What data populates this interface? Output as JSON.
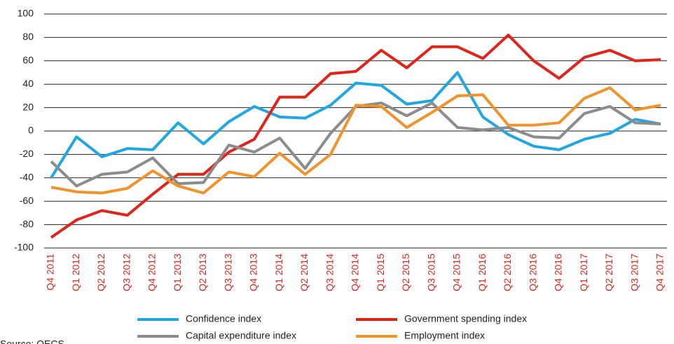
{
  "chart_data": {
    "type": "line",
    "categories": [
      "Q4 2011",
      "Q1 2012",
      "Q2 2012",
      "Q3 2012",
      "Q4 2012",
      "Q1 2013",
      "Q2 2013",
      "Q3 2013",
      "Q4 2013",
      "Q1 2014",
      "Q2 2014",
      "Q3 2014",
      "Q4 2014",
      "Q1 2015",
      "Q2 2015",
      "Q3 2015",
      "Q4 2015",
      "Q1 2016",
      "Q2 2016",
      "Q3 2016",
      "Q4 2016",
      "Q1 2017",
      "Q2 2017",
      "Q3 2017",
      "Q4 2017"
    ],
    "series": [
      {
        "name": "Confidence index",
        "color": "#1ea7e1",
        "values": [
          -40,
          -5,
          -22,
          -15,
          -16,
          7,
          -11,
          8,
          21,
          12,
          11,
          22,
          41,
          39,
          23,
          26,
          50,
          12,
          -3,
          -13,
          -16,
          -7,
          -2,
          10,
          6
        ]
      },
      {
        "name": "Government spending index",
        "color": "#e2231a",
        "values": [
          -91,
          -76,
          -68,
          -72,
          -54,
          -37,
          -37,
          -18,
          -7,
          29,
          29,
          49,
          51,
          69,
          54,
          72,
          72,
          62,
          82,
          60,
          45,
          63,
          69,
          60,
          61
        ]
      },
      {
        "name": "Capital expenditure index",
        "color": "#8c8c8c",
        "values": [
          -26,
          -47,
          -37,
          -35,
          -23,
          -45,
          -44,
          -12,
          -18,
          -6,
          -32,
          -2,
          21,
          24,
          13,
          24,
          3,
          1,
          3,
          -5,
          -6,
          15,
          21,
          7,
          6
        ]
      },
      {
        "name": "Employment index",
        "color": "#f0932b",
        "values": [
          -48,
          -52,
          -53,
          -49,
          -34,
          -47,
          -53,
          -35,
          -39,
          -19,
          -37,
          -20,
          22,
          21,
          3,
          16,
          30,
          31,
          5,
          5,
          7,
          28,
          37,
          18,
          22
        ]
      }
    ],
    "ylim": [
      -100,
      100
    ],
    "yticks": [
      -100,
      -80,
      -60,
      -40,
      -20,
      0,
      20,
      40,
      60,
      80,
      100
    ],
    "grid": true,
    "source": "Source: OECS"
  }
}
